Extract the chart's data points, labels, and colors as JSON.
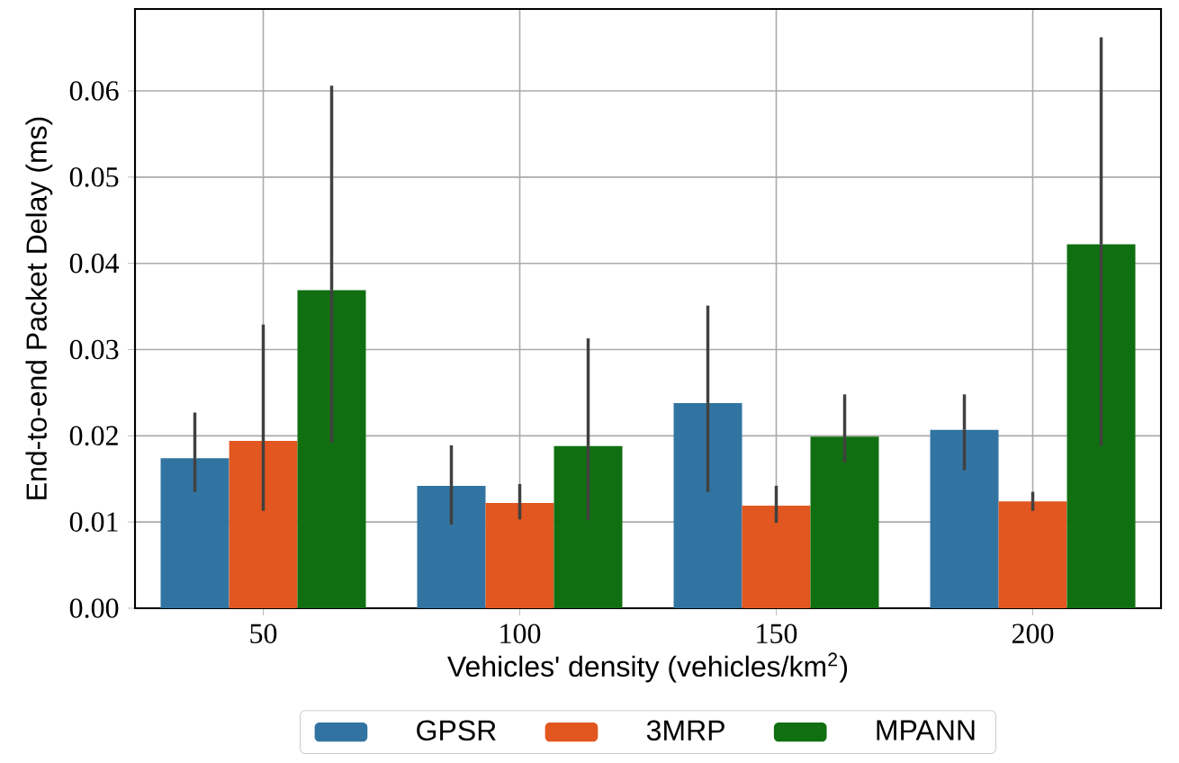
{
  "chart_data": {
    "type": "bar",
    "xlabel": "Vehicles' density (vehicles/km$^{2}$)",
    "ylabel": "End-to-end Packet Delay (ms)",
    "categories": [
      "50",
      "100",
      "150",
      "200"
    ],
    "series": [
      {
        "name": "GPSR",
        "color": "#3274a1",
        "values": [
          0.0174,
          0.0142,
          0.0238,
          0.0207
        ],
        "errors": [
          [
            0.0135,
            0.0227
          ],
          [
            0.0097,
            0.0189
          ],
          [
            0.0135,
            0.0351
          ],
          [
            0.016,
            0.0248
          ]
        ]
      },
      {
        "name": "3MRP",
        "color": "#e1571f",
        "values": [
          0.0194,
          0.0122,
          0.0119,
          0.0124
        ],
        "errors": [
          [
            0.0113,
            0.0329
          ],
          [
            0.0103,
            0.0144
          ],
          [
            0.0099,
            0.0142
          ],
          [
            0.0113,
            0.0135
          ]
        ]
      },
      {
        "name": "MPANN",
        "color": "#107011",
        "values": [
          0.0369,
          0.0188,
          0.0199,
          0.0422
        ],
        "errors": [
          [
            0.0192,
            0.0606
          ],
          [
            0.0102,
            0.0313
          ],
          [
            0.0169,
            0.0248
          ],
          [
            0.0188,
            0.0662
          ]
        ]
      }
    ],
    "ylim": [
      0,
      0.0695
    ],
    "yticks": [
      {
        "value": 0,
        "label": "0.00"
      },
      0.01,
      0.02,
      0.03,
      0.04,
      0.05,
      0.06
    ],
    "grid": true,
    "legend": "bottom"
  }
}
